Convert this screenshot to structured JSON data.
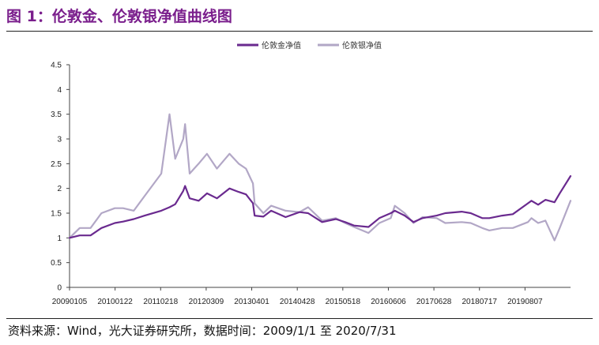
{
  "header": {
    "title": "图 1：伦敦金、伦敦银净值曲线图"
  },
  "footer": {
    "source": "资料来源：Wind，光大证券研究所，数据时间：2009/1/1 至 2020/7/31"
  },
  "chart_data": {
    "type": "line",
    "title": "",
    "xlabel": "",
    "ylabel": "",
    "ylim": [
      0,
      4.5
    ],
    "yticks": [
      "0",
      "0.5",
      "1",
      "1.5",
      "2",
      "2.5",
      "3",
      "3.5",
      "4",
      "4.5"
    ],
    "xtick_labels": [
      "20090105",
      "20100122",
      "20110218",
      "20120309",
      "20130401",
      "20140428",
      "20150518",
      "20160606",
      "20170628",
      "20180717",
      "20190807"
    ],
    "grid": false,
    "legend_position": "top-center",
    "x_unit": "date",
    "x": [
      "2009-01-05",
      "2009-04-01",
      "2009-07-01",
      "2009-10-01",
      "2010-01-22",
      "2010-04-01",
      "2010-07-01",
      "2010-10-01",
      "2011-02-18",
      "2011-04-28",
      "2011-06-15",
      "2011-08-22",
      "2011-09-06",
      "2011-10-15",
      "2011-12-30",
      "2012-03-09",
      "2012-06-01",
      "2012-09-15",
      "2012-12-01",
      "2013-02-01",
      "2013-04-01",
      "2013-04-15",
      "2013-06-28",
      "2013-09-01",
      "2014-01-01",
      "2014-04-28",
      "2014-07-10",
      "2014-11-05",
      "2015-03-01",
      "2015-05-18",
      "2015-08-01",
      "2015-12-01",
      "2016-03-01",
      "2016-06-06",
      "2016-07-10",
      "2016-10-01",
      "2016-12-15",
      "2017-03-01",
      "2017-06-28",
      "2017-09-08",
      "2018-01-25",
      "2018-04-11",
      "2018-07-17",
      "2018-09-15",
      "2019-01-01",
      "2019-04-01",
      "2019-08-07",
      "2019-09-05",
      "2019-11-01",
      "2020-01-01",
      "2020-03-18",
      "2020-05-01",
      "2020-07-31"
    ],
    "series": [
      {
        "name": "伦敦金净值",
        "color": "#6a2a8f",
        "values": [
          1.0,
          1.05,
          1.05,
          1.2,
          1.3,
          1.33,
          1.38,
          1.45,
          1.55,
          1.62,
          1.68,
          1.95,
          2.05,
          1.8,
          1.75,
          1.9,
          1.8,
          2.0,
          1.93,
          1.88,
          1.7,
          1.45,
          1.43,
          1.55,
          1.42,
          1.52,
          1.5,
          1.32,
          1.38,
          1.32,
          1.25,
          1.22,
          1.4,
          1.5,
          1.55,
          1.45,
          1.32,
          1.4,
          1.45,
          1.5,
          1.53,
          1.5,
          1.4,
          1.4,
          1.45,
          1.48,
          1.7,
          1.75,
          1.67,
          1.77,
          1.72,
          1.9,
          2.25
        ]
      },
      {
        "name": "伦敦银净值",
        "color": "#b2a7c6",
        "values": [
          1.0,
          1.2,
          1.2,
          1.5,
          1.6,
          1.6,
          1.55,
          1.85,
          2.3,
          3.5,
          2.6,
          3.0,
          3.3,
          2.3,
          2.5,
          2.7,
          2.4,
          2.7,
          2.5,
          2.4,
          2.1,
          1.7,
          1.5,
          1.65,
          1.55,
          1.52,
          1.62,
          1.35,
          1.4,
          1.3,
          1.22,
          1.1,
          1.3,
          1.4,
          1.65,
          1.5,
          1.3,
          1.42,
          1.4,
          1.3,
          1.32,
          1.3,
          1.2,
          1.15,
          1.2,
          1.2,
          1.32,
          1.4,
          1.3,
          1.35,
          0.95,
          1.2,
          1.75
        ]
      }
    ]
  }
}
